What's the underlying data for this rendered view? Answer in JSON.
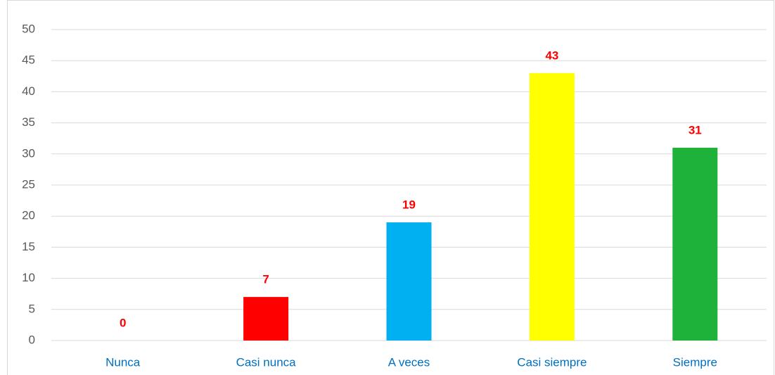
{
  "chart_data": {
    "type": "bar",
    "categories": [
      "Nunca",
      "Casi nunca",
      "A veces",
      "Casi siempre",
      "Siempre"
    ],
    "values": [
      0,
      7,
      19,
      43,
      31
    ],
    "colors": [
      null,
      "#ff0000",
      "#00b0f0",
      "#ffff00",
      "#1fb23a"
    ],
    "ylim": [
      0,
      50
    ],
    "yticks": [
      0,
      5,
      10,
      15,
      20,
      25,
      30,
      35,
      40,
      45,
      50
    ],
    "grid": true
  }
}
